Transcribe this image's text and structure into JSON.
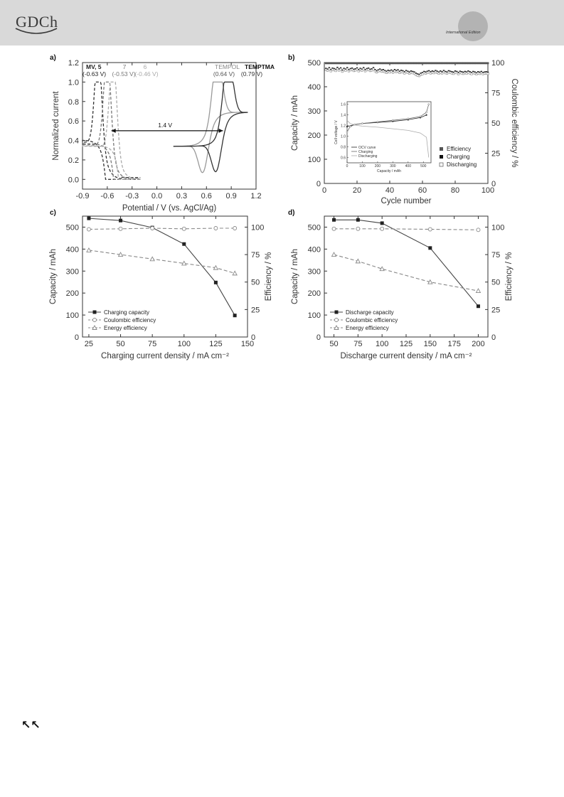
{
  "header": {
    "logo_text": "GDCh",
    "edition_text": "International Edition"
  },
  "nav": {
    "icon": "double-arrow-up-left-icon",
    "glyph": "↖↖"
  },
  "chart_data": [
    {
      "panel": "a)",
      "type": "line",
      "xlabel": "Potential / V (vs. AgCl/Ag)",
      "ylabel": "Normalized current",
      "xlim": [
        -0.9,
        1.2
      ],
      "ylim": [
        -0.1,
        1.2
      ],
      "xticks": [
        "-0.9",
        "-0.6",
        "-0.3",
        "0.0",
        "0.3",
        "0.6",
        "0.9",
        "1.2"
      ],
      "yticks": [
        "0.0",
        "0.2",
        "0.4",
        "0.6",
        "0.8",
        "1.0",
        "1.2"
      ],
      "annotations": [
        {
          "text": "MV, 5",
          "color": "#222222",
          "bold": true
        },
        {
          "text": "(-0.63 V)",
          "color": "#222222"
        },
        {
          "text": "7",
          "color": "#777777"
        },
        {
          "text": "(-0.53 V)",
          "color": "#777777"
        },
        {
          "text": "6",
          "color": "#aaaaaa"
        },
        {
          "text": "(-0.46 V)",
          "color": "#aaaaaa"
        },
        {
          "text": "TEMPOL",
          "color": "#888888"
        },
        {
          "text": "(0.64 V)",
          "color": "#555555"
        },
        {
          "text": "TEMPTMA",
          "color": "#111111",
          "bold": true
        },
        {
          "text": "(0.79 V)",
          "color": "#333333"
        },
        {
          "text": "1.4 V",
          "color": "#111111"
        }
      ],
      "series": [
        {
          "color": "#333333",
          "dash": true,
          "e0": -0.63,
          "minusPk": -0.56,
          "plusPk": -0.71,
          "lo": -0.9,
          "hi": -0.2,
          "aMax": 0.7,
          "rOff": 0.18
        },
        {
          "color": "#777777",
          "dash": true,
          "e0": -0.53,
          "minusPk": -0.46,
          "plusPk": -0.6,
          "lo": -0.9,
          "hi": -0.2,
          "aMax": 0.65,
          "rOff": 0.1
        },
        {
          "color": "#aaaaaa",
          "dash": true,
          "e0": -0.46,
          "minusPk": -0.4,
          "plusPk": -0.53,
          "lo": -0.9,
          "hi": -0.2,
          "aMax": 0.62,
          "rOff": 0.05
        },
        {
          "color": "#999999",
          "dash": false,
          "e0": 0.64,
          "minusPk": 0.56,
          "plusPk": 0.73,
          "lo": 0.2,
          "hi": 1.1,
          "aMax": 0.7,
          "rOff": 0.34
        },
        {
          "color": "#333333",
          "dash": false,
          "e0": 0.79,
          "minusPk": 0.72,
          "plusPk": 0.86,
          "lo": 0.2,
          "hi": 1.1,
          "aMax": 0.7,
          "rOff": 0.34
        }
      ],
      "arrow": {
        "x0": -0.55,
        "x1": 0.8,
        "y": 0.5,
        "label": "1.4 V"
      }
    },
    {
      "panel": "b)",
      "type": "scatter",
      "xlabel": "Cycle number",
      "ylabel": "Capacity / mAh",
      "y2label": "Coulombic efficiency / %",
      "xlim": [
        0,
        100
      ],
      "ylim": [
        0,
        500
      ],
      "y2lim": [
        0,
        100
      ],
      "xticks": [
        "0",
        "20",
        "40",
        "60",
        "80",
        "100"
      ],
      "yticks": [
        "0",
        "100",
        "200",
        "300",
        "400",
        "500"
      ],
      "y2ticks": [
        "0",
        "25",
        "50",
        "75",
        "100"
      ],
      "legend": [
        "Efficiency",
        "Charging",
        "Discharging"
      ],
      "efficiency_pct": 99.5,
      "charging_mah": [
        475,
        472,
        478,
        470,
        476,
        474,
        471,
        479,
        473,
        477,
        468,
        475,
        472,
        478,
        470,
        474,
        476,
        471,
        473,
        477,
        470,
        475,
        472,
        478,
        470,
        474,
        476,
        471,
        473,
        478,
        470,
        465,
        469,
        472,
        468,
        470,
        466,
        463,
        467,
        465,
        468,
        464,
        470,
        466,
        469,
        463,
        467,
        465,
        461,
        466,
        463,
        460,
        464,
        462,
        460,
        455,
        452,
        450,
        455,
        458,
        462,
        460,
        463,
        465,
        461,
        464,
        462,
        466,
        463,
        460,
        464,
        461,
        466,
        462,
        460,
        465,
        463,
        461,
        459,
        464,
        462,
        458,
        463,
        461,
        459,
        462,
        460,
        464,
        461,
        458,
        462,
        460,
        457,
        461,
        459,
        462,
        458,
        460,
        461,
        459
      ],
      "discharging_mah": [
        470,
        467,
        473,
        465,
        471,
        469,
        466,
        474,
        468,
        472,
        463,
        470,
        467,
        473,
        465,
        469,
        471,
        466,
        468,
        472,
        465,
        470,
        467,
        473,
        465,
        469,
        471,
        466,
        468,
        473,
        465,
        460,
        464,
        467,
        463,
        465,
        461,
        458,
        462,
        460,
        463,
        459,
        465,
        461,
        464,
        458,
        462,
        460,
        456,
        461,
        458,
        455,
        459,
        457,
        455,
        450,
        447,
        445,
        450,
        453,
        457,
        455,
        458,
        460,
        456,
        459,
        457,
        461,
        458,
        455,
        459,
        456,
        461,
        457,
        455,
        460,
        458,
        456,
        454,
        459,
        457,
        453,
        458,
        456,
        454,
        457,
        455,
        459,
        456,
        453,
        457,
        455,
        452,
        456,
        454,
        457,
        453,
        455,
        456,
        454
      ],
      "inset": {
        "xlabel": "Capacity / mAh",
        "ylabel": "Cell voltage / V",
        "xticks": [
          "0",
          "100",
          "200",
          "300",
          "400",
          "500"
        ],
        "yticks": [
          "0.6",
          "0.8",
          "1.0",
          "1.2",
          "1.4",
          "1.6"
        ],
        "legend": [
          "OCV curve",
          "Charging",
          "Discharging"
        ],
        "ocv": [
          [
            0,
            1.18
          ],
          [
            50,
            1.22
          ],
          [
            100,
            1.24
          ],
          [
            200,
            1.26
          ],
          [
            300,
            1.28
          ],
          [
            400,
            1.31
          ],
          [
            480,
            1.35
          ],
          [
            520,
            1.4
          ]
        ],
        "charging": [
          [
            0,
            1.08
          ],
          [
            20,
            1.18
          ],
          [
            50,
            1.22
          ],
          [
            100,
            1.24
          ],
          [
            200,
            1.27
          ],
          [
            300,
            1.3
          ],
          [
            400,
            1.33
          ],
          [
            480,
            1.37
          ],
          [
            520,
            1.45
          ],
          [
            535,
            1.6
          ]
        ],
        "discharging": [
          [
            0,
            1.3
          ],
          [
            20,
            1.24
          ],
          [
            50,
            1.21
          ],
          [
            100,
            1.19
          ],
          [
            200,
            1.17
          ],
          [
            300,
            1.14
          ],
          [
            400,
            1.11
          ],
          [
            480,
            1.06
          ],
          [
            520,
            0.98
          ],
          [
            535,
            0.6
          ]
        ]
      }
    },
    {
      "panel": "c)",
      "type": "line",
      "xlabel": "Charging current density / mA cm⁻²",
      "ylabel": "Capacity / mAh",
      "y2label": "Efficiency / %",
      "xlim": [
        20,
        150
      ],
      "ylim": [
        0,
        550
      ],
      "y2lim": [
        0,
        110
      ],
      "xticks": [
        "25",
        "50",
        "75",
        "100",
        "125",
        "150"
      ],
      "yticks": [
        "0",
        "100",
        "200",
        "300",
        "400",
        "500"
      ],
      "y2ticks": [
        "0",
        "25",
        "50",
        "75",
        "100"
      ],
      "x": [
        25,
        50,
        75,
        100,
        125,
        140
      ],
      "series": [
        {
          "name": "Charging capacity",
          "axis": "left",
          "values": [
            540,
            530,
            498,
            423,
            248,
            98
          ]
        },
        {
          "name": "Coulombic efficiency",
          "axis": "right",
          "values": [
            98,
            98.5,
            99,
            98.5,
            99,
            99
          ]
        },
        {
          "name": "Energy efficiency",
          "axis": "right",
          "values": [
            79,
            75,
            71,
            67,
            63,
            58
          ]
        }
      ]
    },
    {
      "panel": "d)",
      "type": "line",
      "xlabel": "Discharge current density / mA cm⁻²",
      "ylabel": "Capacity / mAh",
      "y2label": "Efficiency / %",
      "xlim": [
        40,
        210
      ],
      "ylim": [
        0,
        550
      ],
      "y2lim": [
        0,
        110
      ],
      "xticks": [
        "50",
        "75",
        "100",
        "125",
        "150",
        "175",
        "200"
      ],
      "yticks": [
        "0",
        "100",
        "200",
        "300",
        "400",
        "500"
      ],
      "y2ticks": [
        "0",
        "25",
        "50",
        "75",
        "100"
      ],
      "x": [
        50,
        75,
        100,
        150,
        200
      ],
      "series": [
        {
          "name": "Discharge capacity",
          "axis": "left",
          "values": [
            533,
            533,
            518,
            405,
            140
          ]
        },
        {
          "name": "Coulombic efficiency",
          "axis": "right",
          "values": [
            98.5,
            98.5,
            98.5,
            98,
            97.5
          ]
        },
        {
          "name": "Energy efficiency",
          "axis": "right",
          "values": [
            75,
            69,
            62,
            50,
            42
          ]
        }
      ]
    }
  ]
}
